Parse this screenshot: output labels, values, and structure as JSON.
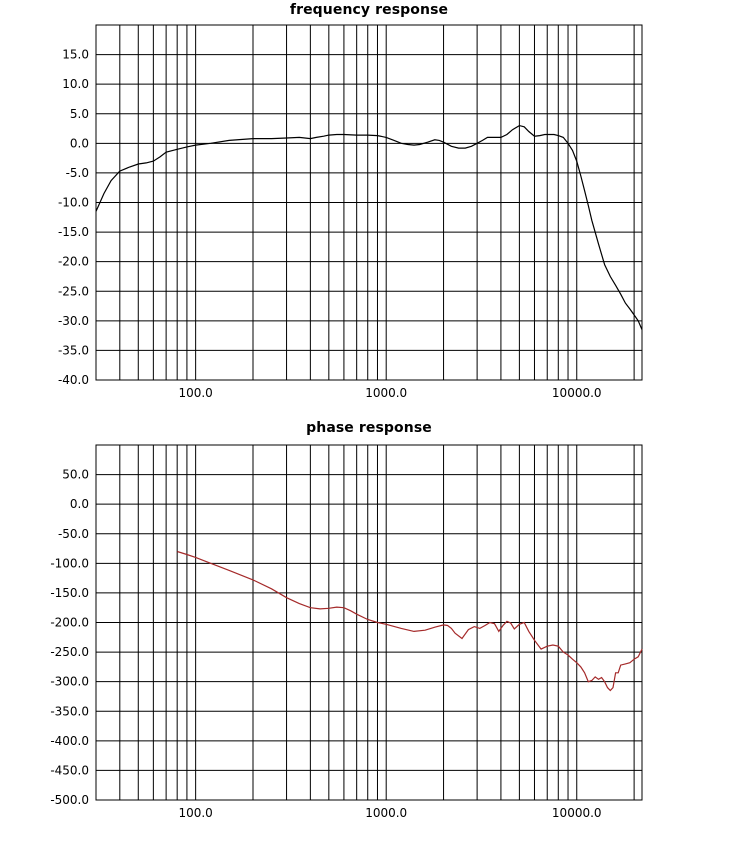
{
  "chart_data": [
    {
      "type": "line",
      "title": "frequency response",
      "x_scale": "log",
      "xlim": [
        30,
        22000
      ],
      "ylim": [
        -40,
        20
      ],
      "grid": true,
      "x_tick_labels": [
        "100.0",
        "1000.0",
        "10000.0"
      ],
      "x_tick_values": [
        100,
        1000,
        10000
      ],
      "y_tick_labels": [
        "15.0",
        "10.0",
        "5.0",
        "0.0",
        "-5.0",
        "-10.0",
        "-15.0",
        "-20.0",
        "-25.0",
        "-30.0",
        "-35.0",
        "-40.0"
      ],
      "y_tick_values": [
        15,
        10,
        5,
        0,
        -5,
        -10,
        -15,
        -20,
        -25,
        -30,
        -35,
        -40
      ],
      "line_color": "#000000",
      "series": [
        {
          "x": [
            30,
            33,
            36,
            40,
            45,
            50,
            55,
            60,
            65,
            70,
            80,
            90,
            100,
            120,
            150,
            200,
            250,
            300,
            350,
            400,
            430,
            470,
            500,
            550,
            600,
            700,
            800,
            900,
            1000,
            1100,
            1200,
            1300,
            1400,
            1500,
            1650,
            1800,
            1900,
            2000,
            2200,
            2400,
            2600,
            2800,
            3000,
            3200,
            3400,
            3700,
            4000,
            4300,
            4600,
            5000,
            5300,
            5600,
            6000,
            6400,
            6800,
            7200,
            7600,
            8000,
            8500,
            9000,
            9500,
            10000,
            10500,
            11000,
            11500,
            12000,
            13000,
            14000,
            15000,
            16000,
            17000,
            18000,
            19000,
            20000,
            21000,
            22000
          ],
          "y": [
            -11.5,
            -8.5,
            -6.3,
            -4.7,
            -4.0,
            -3.5,
            -3.3,
            -3.0,
            -2.3,
            -1.5,
            -1.0,
            -0.6,
            -0.3,
            0.0,
            0.5,
            0.8,
            0.8,
            0.9,
            1.0,
            0.8,
            1.0,
            1.2,
            1.4,
            1.5,
            1.5,
            1.4,
            1.4,
            1.3,
            1.0,
            0.5,
            0.0,
            -0.2,
            -0.3,
            -0.2,
            0.2,
            0.6,
            0.5,
            0.2,
            -0.5,
            -0.8,
            -0.8,
            -0.5,
            0.0,
            0.5,
            1.0,
            1.0,
            1.0,
            1.5,
            2.3,
            3.0,
            2.8,
            2.0,
            1.2,
            1.3,
            1.5,
            1.5,
            1.5,
            1.3,
            1.0,
            0.0,
            -1.2,
            -3.0,
            -5.5,
            -8.0,
            -10.5,
            -13.0,
            -17.0,
            -20.5,
            -22.5,
            -24.0,
            -25.5,
            -27.0,
            -28.0,
            -29.0,
            -30.0,
            -31.5
          ]
        }
      ]
    },
    {
      "type": "line",
      "title": "phase response",
      "x_scale": "log",
      "xlim": [
        30,
        22000
      ],
      "ylim": [
        -500,
        100
      ],
      "grid": true,
      "x_tick_labels": [
        "100.0",
        "1000.0",
        "10000.0"
      ],
      "x_tick_values": [
        100,
        1000,
        10000
      ],
      "y_tick_labels": [
        "50.0",
        "0.0",
        "-50.0",
        "-100.0",
        "-150.0",
        "-200.0",
        "-250.0",
        "-300.0",
        "-350.0",
        "-400.0",
        "-450.0",
        "-500.0"
      ],
      "y_tick_values": [
        50,
        0,
        -50,
        -100,
        -150,
        -200,
        -250,
        -300,
        -350,
        -400,
        -450,
        -500
      ],
      "line_color": "#a52a2a",
      "series": [
        {
          "x": [
            80,
            90,
            100,
            120,
            150,
            200,
            250,
            300,
            350,
            400,
            450,
            500,
            550,
            600,
            650,
            700,
            800,
            900,
            1000,
            1200,
            1400,
            1600,
            1800,
            2000,
            2100,
            2200,
            2300,
            2500,
            2700,
            2900,
            3100,
            3300,
            3500,
            3700,
            3900,
            4100,
            4300,
            4500,
            4700,
            5000,
            5300,
            5600,
            6000,
            6500,
            7000,
            7500,
            8000,
            8500,
            9000,
            9500,
            10000,
            10500,
            11000,
            11500,
            12000,
            12500,
            13000,
            13500,
            14000,
            14500,
            15000,
            15500,
            16000,
            16500,
            17000,
            18000,
            19000,
            20000,
            21000,
            22000
          ],
          "y": [
            -80,
            -85,
            -90,
            -100,
            -112,
            -128,
            -143,
            -158,
            -168,
            -175,
            -177,
            -176,
            -174,
            -175,
            -180,
            -186,
            -195,
            -200,
            -203,
            -210,
            -215,
            -213,
            -208,
            -204,
            -205,
            -210,
            -218,
            -227,
            -212,
            -207,
            -210,
            -205,
            -200,
            -202,
            -215,
            -205,
            -198,
            -201,
            -211,
            -203,
            -200,
            -215,
            -230,
            -245,
            -240,
            -238,
            -240,
            -250,
            -255,
            -262,
            -268,
            -275,
            -285,
            -300,
            -298,
            -292,
            -296,
            -293,
            -300,
            -310,
            -315,
            -310,
            -285,
            -285,
            -272,
            -270,
            -268,
            -262,
            -258,
            -245
          ]
        }
      ]
    }
  ]
}
